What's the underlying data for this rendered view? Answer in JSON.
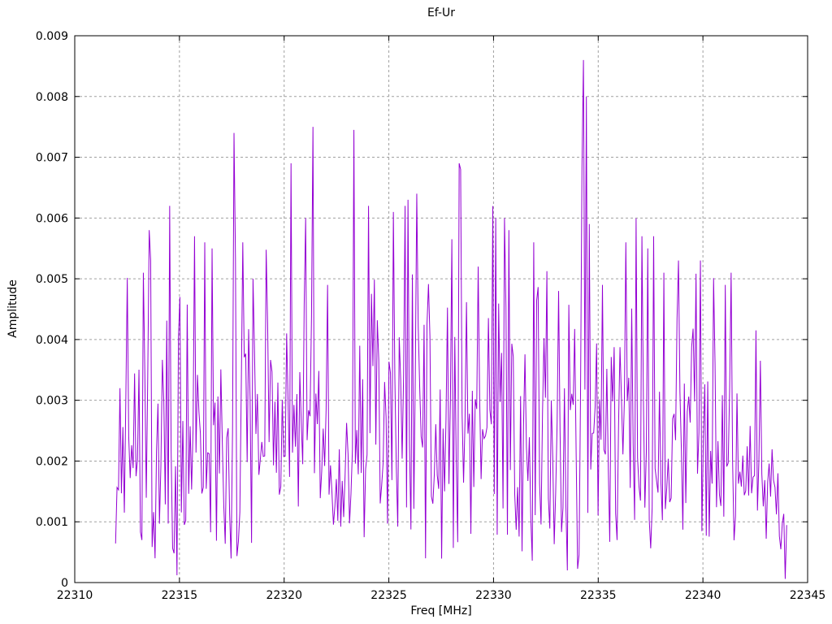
{
  "chart_data": {
    "type": "line",
    "title": "Ef-Ur",
    "xlabel": "Freq [MHz]",
    "ylabel": "Amplitude",
    "xlim": [
      22310,
      22345
    ],
    "ylim": [
      0,
      0.009
    ],
    "xticks": [
      22310,
      22315,
      22320,
      22325,
      22330,
      22335,
      22340,
      22345
    ],
    "xtick_labels": [
      "22310",
      "22315",
      "22320",
      "22325",
      "22330",
      "22335",
      "22340",
      "22345"
    ],
    "yticks": [
      0,
      0.001,
      0.002,
      0.003,
      0.004,
      0.005,
      0.006,
      0.007,
      0.008,
      0.009
    ],
    "ytick_labels": [
      "0",
      "0.001",
      "0.002",
      "0.003",
      "0.004",
      "0.005",
      "0.006",
      "0.007",
      "0.008",
      "0.009"
    ],
    "grid": true,
    "legend": "none",
    "line_color": "#9400D3",
    "grid_color": "#a0a0a0",
    "border_color": "#000000",
    "data_range": {
      "x_start": 22311.95,
      "x_end": 22344.0
    },
    "noise_model": {
      "seed": 20240615,
      "n_points": 460,
      "floor": 0.0002,
      "sigma": 0.0017,
      "max_base": 0.0063,
      "base_gain": 0.9,
      "mid_hump_center": 22326.5,
      "mid_hump_width": 9.5,
      "mid_hump_gain": 0.22,
      "left_fade_end": 22312.8,
      "right_fade_start": 22342.6
    },
    "peaks": [
      [
        22312.15,
        0.0032
      ],
      [
        22313.25,
        0.0051
      ],
      [
        22313.55,
        0.0058
      ],
      [
        22313.65,
        0.0053
      ],
      [
        22314.5,
        0.0062
      ],
      [
        22315.0,
        0.0047
      ],
      [
        22315.7,
        0.0057
      ],
      [
        22316.2,
        0.0056
      ],
      [
        22316.55,
        0.0055
      ],
      [
        22317.6,
        0.0074
      ],
      [
        22318.05,
        0.0056
      ],
      [
        22318.5,
        0.005
      ],
      [
        22320.1,
        0.0041
      ],
      [
        22320.35,
        0.0069
      ],
      [
        22321.0,
        0.006
      ],
      [
        22321.4,
        0.0075
      ],
      [
        22322.1,
        0.0049
      ],
      [
        22323.35,
        0.00745
      ],
      [
        22324.0,
        0.0062
      ],
      [
        22325.2,
        0.0061
      ],
      [
        22325.75,
        0.0062
      ],
      [
        22325.95,
        0.0063
      ],
      [
        22326.3,
        0.0064
      ],
      [
        22328.35,
        0.0069
      ],
      [
        22328.45,
        0.0068
      ],
      [
        22329.3,
        0.0052
      ],
      [
        22330.1,
        0.006
      ],
      [
        22330.55,
        0.006
      ],
      [
        22330.75,
        0.0058
      ],
      [
        22331.9,
        0.0056
      ],
      [
        22333.1,
        0.0048
      ],
      [
        22334.2,
        0.00685
      ],
      [
        22334.3,
        0.0086
      ],
      [
        22334.45,
        0.008
      ],
      [
        22334.6,
        0.0059
      ],
      [
        22335.2,
        0.0049
      ],
      [
        22336.3,
        0.0056
      ],
      [
        22337.1,
        0.0057
      ],
      [
        22337.35,
        0.0055
      ],
      [
        22337.65,
        0.0057
      ],
      [
        22338.1,
        0.0051
      ],
      [
        22338.85,
        0.0053
      ],
      [
        22339.9,
        0.0053
      ],
      [
        22341.1,
        0.0049
      ],
      [
        22341.35,
        0.0051
      ],
      [
        22342.5,
        0.00415
      ]
    ],
    "dips": [
      [
        22313.85,
        0.0004
      ],
      [
        22314.9,
        0.00012
      ],
      [
        22326.75,
        0.0004
      ],
      [
        22333.5,
        0.0002
      ],
      [
        22335.9,
        0.0007
      ],
      [
        22343.95,
        6e-05
      ]
    ]
  }
}
